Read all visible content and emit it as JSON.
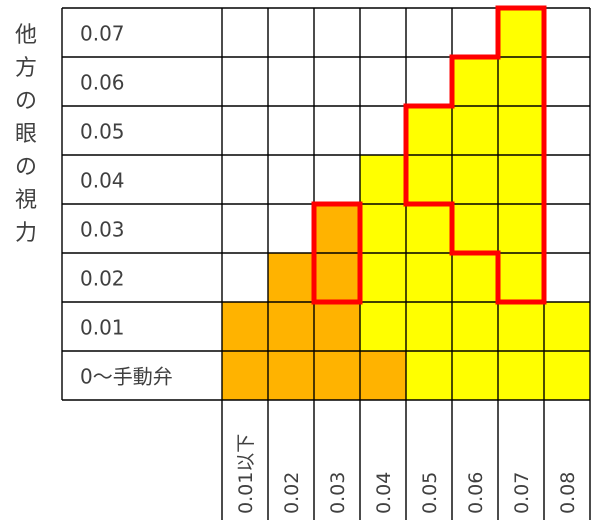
{
  "y_axis_label": "他方の眼の視力",
  "rows": [
    "0.07",
    "0.06",
    "0.05",
    "0.04",
    "0.03",
    "0.02",
    "0.01",
    "0〜手動弁"
  ],
  "columns": [
    "0.01以下",
    "0.02",
    "0.03",
    "0.04",
    "0.05",
    "0.06",
    "0.07",
    "0.08"
  ],
  "cell_fill": [
    [
      "",
      "",
      "",
      "",
      "",
      "",
      "Y",
      ""
    ],
    [
      "",
      "",
      "",
      "",
      "",
      "Y",
      "Y",
      ""
    ],
    [
      "",
      "",
      "",
      "",
      "Y",
      "Y",
      "Y",
      ""
    ],
    [
      "",
      "",
      "",
      "Y",
      "Y",
      "Y",
      "Y",
      ""
    ],
    [
      "",
      "",
      "O",
      "Y",
      "Y",
      "Y",
      "Y",
      ""
    ],
    [
      "",
      "O",
      "O",
      "Y",
      "Y",
      "Y",
      "Y",
      ""
    ],
    [
      "O",
      "O",
      "O",
      "Y",
      "Y",
      "Y",
      "Y",
      "Y"
    ],
    [
      "O",
      "O",
      "O",
      "O",
      "Y",
      "Y",
      "Y",
      "Y"
    ]
  ],
  "fill_colors": {
    "O": "#FFB300",
    "Y": "#FFFF00"
  },
  "outline_color": "#FF0000",
  "grid_color": "#000000"
}
